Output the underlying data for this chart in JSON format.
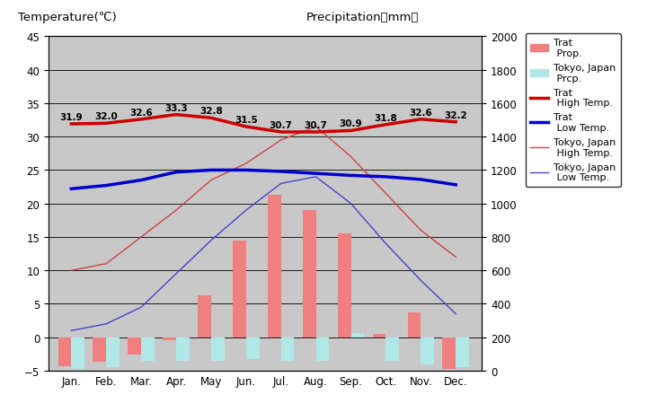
{
  "months": [
    "Jan.",
    "Feb.",
    "Mar.",
    "Apr.",
    "May",
    "Jun.",
    "Jul.",
    "Aug.",
    "Sep.",
    "Oct.",
    "Nov.",
    "Dec."
  ],
  "trat_high": [
    31.9,
    32.0,
    32.6,
    33.3,
    32.8,
    31.5,
    30.7,
    30.7,
    30.9,
    31.8,
    32.6,
    32.2
  ],
  "trat_low": [
    22.2,
    22.7,
    23.5,
    24.7,
    25.0,
    25.0,
    24.8,
    24.5,
    24.2,
    24.0,
    23.6,
    22.8
  ],
  "tokyo_high": [
    10.0,
    11.0,
    15.0,
    19.0,
    23.5,
    26.0,
    29.5,
    31.5,
    27.0,
    21.5,
    16.0,
    12.0
  ],
  "tokyo_low": [
    1.0,
    2.0,
    4.5,
    9.5,
    14.5,
    19.0,
    23.0,
    24.0,
    20.0,
    14.0,
    8.5,
    3.5
  ],
  "trat_bar_vals": [
    -4.3,
    -3.6,
    -2.6,
    -0.5,
    6.25,
    14.5,
    21.25,
    19.0,
    15.5,
    0.5,
    3.75,
    -4.75
  ],
  "tokyo_bar_vals": [
    -4.75,
    -4.5,
    -3.5,
    -3.5,
    -3.5,
    -3.25,
    -3.5,
    -3.5,
    0.625,
    -3.5,
    -4.0,
    -4.5
  ],
  "trat_high_labels": [
    "31.9",
    "32.0",
    "32.6",
    "33.3",
    "32.8",
    "31.5",
    "30.7",
    "30.7",
    "30.9",
    "31.8",
    "32.6",
    "32.2"
  ],
  "background_color": "#c8c8c8",
  "plot_bg_color": "#c8c8c8",
  "trat_bar_color": "#f08080",
  "tokyo_bar_color": "#b0e8e8",
  "trat_high_color": "#cc0000",
  "trat_low_color": "#0000cc",
  "tokyo_high_color": "#cc4444",
  "tokyo_low_color": "#4444cc",
  "ylim_temp": [
    -5,
    45
  ],
  "ylim_precip": [
    0,
    2000
  ],
  "title_left": "Temperature(℃)",
  "title_right": "Precipitation（mm）"
}
